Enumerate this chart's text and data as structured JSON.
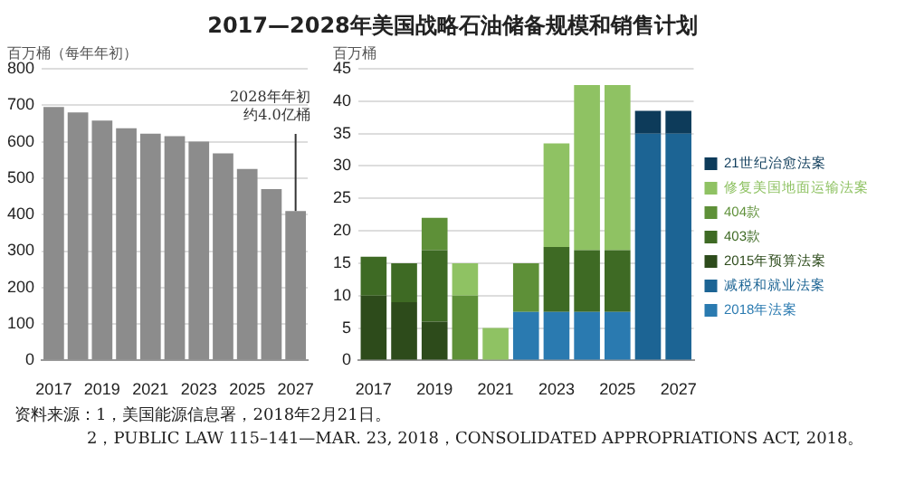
{
  "chart_data": [
    {
      "type": "bar",
      "title": "2017—2028年美国战略石油储备规模和销售计划",
      "ylabel": "百万桶（每年年初）",
      "categories": [
        "2017",
        null,
        "2019",
        null,
        "2021",
        null,
        "2023",
        null,
        "2025",
        null,
        "2027"
      ],
      "values": [
        695,
        680,
        658,
        637,
        622,
        615,
        600,
        568,
        525,
        470,
        410
      ],
      "color": "#8c8c8c",
      "ylim": [
        0,
        800
      ],
      "yticks": [
        0,
        100,
        200,
        300,
        400,
        500,
        600,
        700,
        800
      ],
      "grid": "y",
      "annotations": [
        {
          "text": "2028年年初约4.0亿桶",
          "x": "2027",
          "y": 410
        },
        "资料来源：1，美国能源信息署，2018年2月21日。",
        "2，PUBLIC LAW 115–141—MAR. 23, 2018，CONSOLIDATED APPROPRIATIONS ACT, 2018。"
      ]
    },
    {
      "type": "bar",
      "stacked": true,
      "ylabel": "百万桶",
      "legend": "right",
      "categories": [
        "2017",
        null,
        "2019",
        null,
        "2021",
        null,
        "2023",
        null,
        "2025",
        null,
        "2027"
      ],
      "series": [
        {
          "name": "2018年法案",
          "color": "#2a7ab0",
          "values": [
            null,
            null,
            null,
            null,
            null,
            7.5,
            7.5,
            7.5,
            7.5,
            null,
            null
          ]
        },
        {
          "name": "减税和就业法案",
          "color": "#1c6494",
          "values": [
            null,
            null,
            null,
            null,
            null,
            null,
            null,
            null,
            null,
            35,
            35
          ]
        },
        {
          "name": "2015年预算法案",
          "color": "#2d4b1b",
          "values": [
            10,
            9,
            6,
            null,
            null,
            null,
            null,
            null,
            null,
            null,
            null
          ]
        },
        {
          "name": "403款",
          "color": "#3e6a24",
          "values": [
            6,
            6,
            11,
            null,
            null,
            null,
            10,
            9.5,
            9.5,
            null,
            null
          ]
        },
        {
          "name": "404款",
          "color": "#5e9038",
          "values": [
            null,
            null,
            5,
            10,
            null,
            7.5,
            null,
            null,
            null,
            null,
            null
          ]
        },
        {
          "name": "修复美国地面运输法案",
          "color": "#8fc263",
          "values": [
            null,
            null,
            null,
            5,
            5,
            null,
            16,
            25.5,
            25.5,
            null,
            null
          ]
        },
        {
          "name": "21世纪治愈法案",
          "color": "#0d3b5a",
          "values": [
            null,
            null,
            null,
            null,
            null,
            null,
            null,
            null,
            null,
            3.5,
            3.5
          ]
        }
      ],
      "ylim": [
        0,
        45
      ],
      "yticks": [
        0,
        5,
        10,
        15,
        20,
        25,
        30,
        35,
        40,
        45
      ],
      "grid": "y"
    }
  ]
}
